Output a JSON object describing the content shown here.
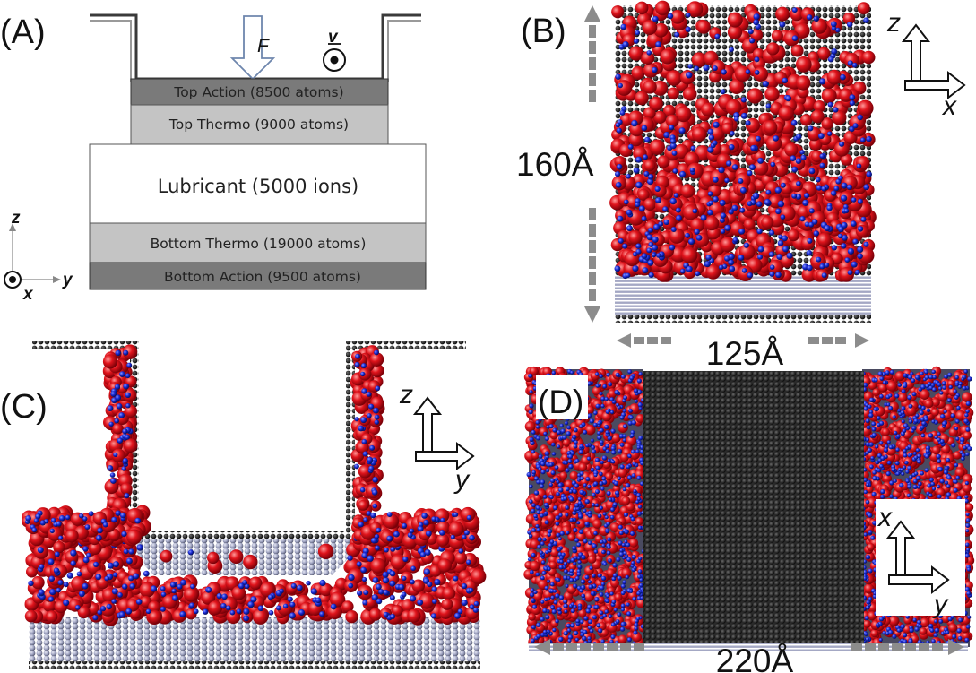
{
  "colors": {
    "top_action": "#7a7a7a",
    "thermo": "#c4c4c4",
    "bottom_action": "#7a7a7a",
    "lubricant": "#ffffff",
    "ion_red": "#d9141e",
    "ion_blue": "#1426c8",
    "wall_black": "#141414",
    "substrate": "#a2a6c2",
    "arrow_grey": "#8c8c8c"
  },
  "panel_a": {
    "label": "(A)",
    "force_label": "F",
    "velocity_label": "v",
    "layers": {
      "top_action": "Top Action (8500 atoms)",
      "top_thermo": "Top Thermo (9000 atoms)",
      "lubricant": "Lubricant (5000 ions)",
      "bottom_thermo": "Bottom Thermo (19000 atoms)",
      "bottom_action": "Bottom Action (9500 atoms)"
    },
    "axes": {
      "vertical": "z",
      "horizontal": "y",
      "out_of_plane": "x"
    }
  },
  "panel_b": {
    "label": "(B)",
    "height_dim": "160Å",
    "width_dim": "125Å",
    "axes": {
      "vertical": "z",
      "horizontal": "x"
    }
  },
  "panel_c": {
    "label": "(C)",
    "axes": {
      "vertical": "z",
      "horizontal": "y"
    }
  },
  "panel_d": {
    "label": "(D)",
    "width_dim": "220Å",
    "axes": {
      "vertical": "x",
      "horizontal": "y"
    }
  }
}
